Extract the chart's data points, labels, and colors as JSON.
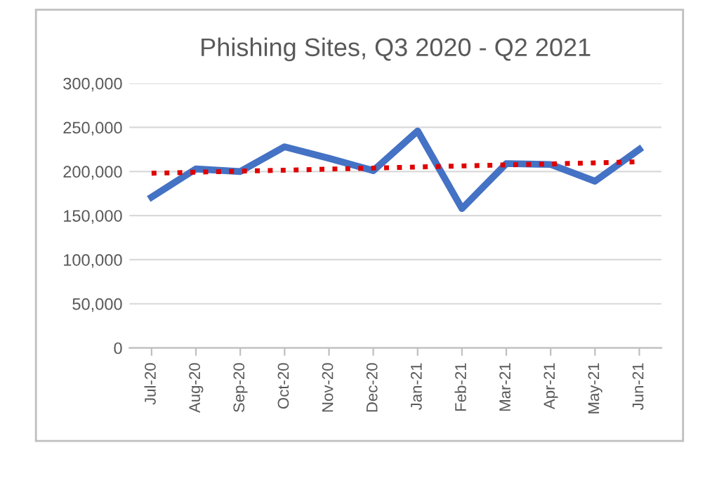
{
  "chart_data": {
    "type": "line",
    "title": "Phishing Sites, Q3 2020 - Q2 2021",
    "categories": [
      "Jul-20",
      "Aug-20",
      "Sep-20",
      "Oct-20",
      "Nov-20",
      "Dec-20",
      "Jan-21",
      "Feb-21",
      "Mar-21",
      "Apr-21",
      "May-21",
      "Jun-21"
    ],
    "series": [
      {
        "color": "#4472c4",
        "values": [
          171000,
          203000,
          200000,
          228000,
          215000,
          201000,
          246000,
          158000,
          209000,
          208000,
          189000,
          225000
        ]
      },
      {
        "color": "#e00000",
        "line_style": "dotted",
        "values": [
          198000,
          199200,
          200400,
          201500,
          202700,
          203900,
          205100,
          206300,
          207500,
          208600,
          209800,
          211000
        ]
      }
    ],
    "ylim": [
      0,
      300000
    ],
    "yticks": [
      {
        "value": 0,
        "label": "0"
      },
      {
        "value": 50000,
        "label": "50,000"
      },
      {
        "value": 100000,
        "label": "100,000"
      },
      {
        "value": 150000,
        "label": "150,000"
      },
      {
        "value": 200000,
        "label": "200,000"
      },
      {
        "value": 250000,
        "label": "250,000"
      },
      {
        "value": 300000,
        "label": "300,000"
      }
    ],
    "grid": "y",
    "legend": false,
    "line_style": "solid",
    "marker": "none"
  }
}
